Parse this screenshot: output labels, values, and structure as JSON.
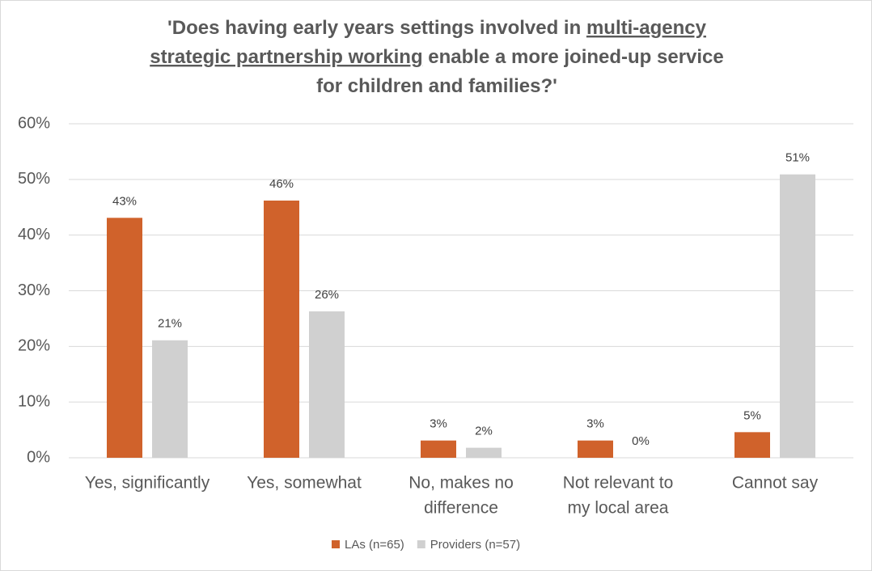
{
  "chart_data": {
    "type": "bar",
    "title": [
      [
        {
          "text": "'Does having early years settings involved in ",
          "underline": false
        },
        {
          "text": "multi-agency",
          "underline": true
        }
      ],
      [
        {
          "text": "strategic partnership working",
          "underline": true
        },
        {
          "text": " enable a more joined-up service",
          "underline": false
        }
      ],
      [
        {
          "text": "for children and families?'",
          "underline": false
        }
      ]
    ],
    "categories": [
      [
        "Yes, significantly"
      ],
      [
        "Yes, somewhat"
      ],
      [
        "No, makes no",
        "difference"
      ],
      [
        "Not relevant to",
        "my local area"
      ],
      [
        "Cannot say"
      ]
    ],
    "series": [
      {
        "name": "LAs (n=65)",
        "color": "#d0622b",
        "values": [
          43.1,
          46.2,
          3.1,
          3.1,
          4.6
        ],
        "value_labels": [
          "43%",
          "46%",
          "3%",
          "3%",
          "5%"
        ]
      },
      {
        "name": "Providers (n=57)",
        "color": "#d0d0d0",
        "values": [
          21.1,
          26.3,
          1.8,
          0,
          50.9
        ],
        "value_labels": [
          "21%",
          "26%",
          "2%",
          "0%",
          "51%"
        ]
      }
    ],
    "ylim": [
      0,
      60
    ],
    "yticks": [
      {
        "value": 0,
        "label": "0%"
      },
      {
        "value": 10,
        "label": "10%"
      },
      {
        "value": 20,
        "label": "20%"
      },
      {
        "value": 30,
        "label": "30%"
      },
      {
        "value": 40,
        "label": "40%"
      },
      {
        "value": 50,
        "label": "50%"
      },
      {
        "value": 60,
        "label": "60%"
      }
    ],
    "grid": true,
    "legend": "bottom"
  }
}
